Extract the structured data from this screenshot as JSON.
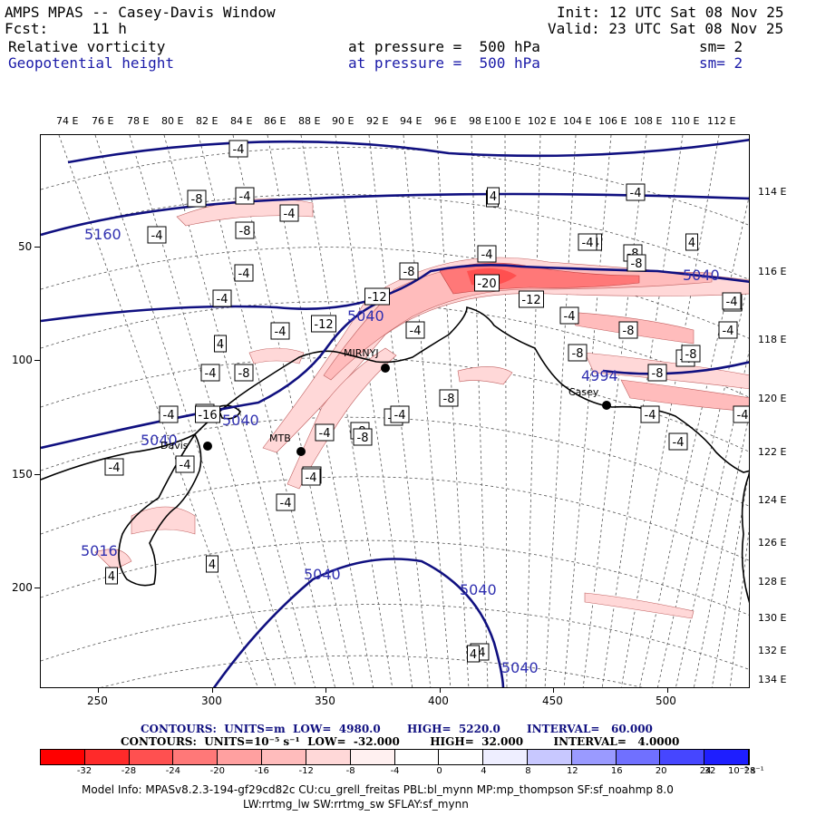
{
  "header": {
    "title": "AMPS MPAS -- Casey-Davis Window",
    "fcst": "Fcst:     11 h",
    "init": "Init: 12 UTC Sat 08 Nov 25",
    "valid": "Valid: 23 UTC Sat 08 Nov 25",
    "field1_name": "Relative vorticity",
    "field1_level": "at pressure =  500 hPa",
    "field1_sm": "sm= 2",
    "field2_name": "Geopotential height",
    "field2_level": "at pressure =  500 hPa",
    "field2_sm": "sm= 2"
  },
  "top_lon_labels": [
    "74 E",
    "76 E",
    "78 E",
    "80 E",
    "82 E",
    "84 E",
    "86 E",
    "88 E",
    "90 E",
    "92 E",
    "94 E",
    "96 E",
    "98 E",
    "100 E",
    "102 E",
    "104 E",
    "106 E",
    "108 E",
    "110 E",
    "112 E"
  ],
  "right_lon_labels": [
    "114 E",
    "116 E",
    "118 E",
    "120 E",
    "122 E",
    "124 E",
    "126 E",
    "128 E",
    "130 E",
    "132 E",
    "134 E"
  ],
  "left_axis_labels": [
    "50",
    "100",
    "150",
    "200"
  ],
  "bottom_axis_labels": [
    "250",
    "300",
    "350",
    "400",
    "450",
    "500"
  ],
  "stations": [
    {
      "name": "Davis"
    },
    {
      "name": "MTB"
    },
    {
      "name": "MIRNYJ"
    },
    {
      "name": "Casey"
    }
  ],
  "height_contour_labels": [
    "5160",
    "5040",
    "5040",
    "5040",
    "5040",
    "5040",
    "5040",
    "5016",
    "4994",
    "5040"
  ],
  "vort_box_labels": [
    "-4",
    "-8",
    "-4",
    "-8",
    "-4",
    "-4",
    "4",
    "-4",
    "4",
    "4",
    "-4",
    "-4",
    "-4",
    "4",
    "-4",
    "-8",
    "-4",
    "-4",
    "-16",
    "-12",
    "-20",
    "-12",
    "-4",
    "-12",
    "-8",
    "-4",
    "-8",
    "-4",
    "-8",
    "-8",
    "-4",
    "-4",
    "4",
    "-4",
    "-4",
    "-8",
    "-8",
    "-4",
    "-4",
    "-8",
    "-8",
    "-4",
    "-4",
    "-4",
    "-4",
    "-4",
    "4",
    "-4",
    "4",
    "-4",
    "4",
    "-4",
    "-4",
    "-8",
    "-4",
    "-4",
    "4",
    "-8"
  ],
  "colorbar": {
    "height_line": "CONTOURS:  UNITS=m  LOW=  4980.0       HIGH=  5220.0       INTERVAL=   60.000",
    "vort_line": "CONTOURS:  UNITS=10⁻⁵ s⁻¹  LOW=  -32.000        HIGH=  32.000        INTERVAL=   4.0000",
    "values": [
      "-32",
      "-28",
      "-24",
      "-20",
      "-16",
      "-12",
      "-8",
      "-4",
      "0",
      "4",
      "8",
      "12",
      "16",
      "20",
      "24",
      "28",
      "32"
    ],
    "unit": "10⁻⁵ s⁻¹",
    "colors": [
      "#ff0000",
      "#ff2a2a",
      "#ff5050",
      "#ff7878",
      "#ffa0a0",
      "#ffbcbc",
      "#ffd8d8",
      "#fff0f0",
      "#ffffff",
      "#ffffff",
      "#eeeeff",
      "#c8c8ff",
      "#9a9aff",
      "#7070ff",
      "#4646ff",
      "#1e1eff"
    ]
  },
  "footer": {
    "line1": "Model Info: MPASv8.2.3-194-gf29cd82c CU:cu_grell_freitas PBL:bl_mynn MP:mp_thompson SF:sf_noahmp 8.0",
    "line2": "LW:rrtmg_lw SW:rrtmg_sw SFLAY:sf_mynn"
  }
}
